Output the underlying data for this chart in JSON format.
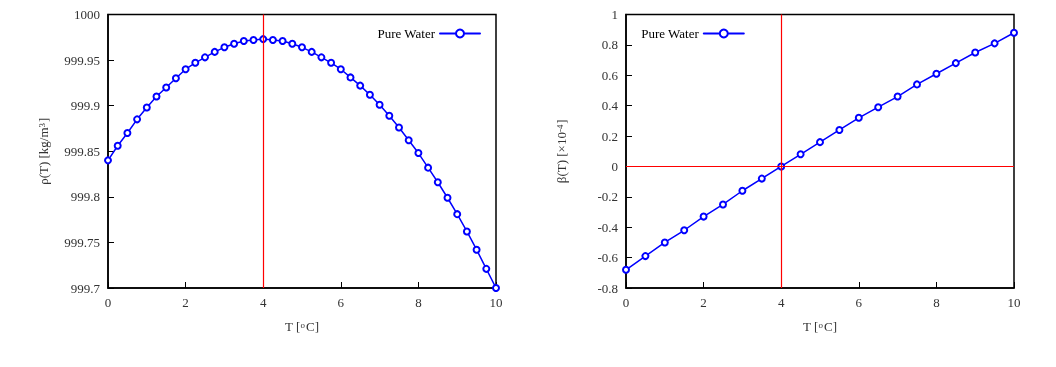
{
  "chart_data": [
    {
      "type": "line",
      "xlabel": "T [$^{o}$C]",
      "ylabel": "ρ(T) [kg/m$^{3}$]",
      "xlim": [
        0,
        10
      ],
      "xticks": [
        0,
        2,
        4,
        6,
        8,
        10
      ],
      "ylim": [
        999.7,
        1000
      ],
      "yticks": [
        999.7,
        999.75,
        999.8,
        999.85,
        999.9,
        999.95,
        1000
      ],
      "legend": "top right",
      "marker": "circle",
      "line_style": "solid",
      "grid": false,
      "series": [
        {
          "name": "Pure Water",
          "color": "#0000ff",
          "x": [
            0,
            0.25,
            0.5,
            0.75,
            1,
            1.25,
            1.5,
            1.75,
            2,
            2.25,
            2.5,
            2.75,
            3,
            3.25,
            3.5,
            3.75,
            4,
            4.25,
            4.5,
            4.75,
            5,
            5.25,
            5.5,
            5.75,
            6,
            6.25,
            6.5,
            6.75,
            7,
            7.25,
            7.5,
            7.75,
            8,
            8.25,
            8.5,
            8.75,
            9,
            9.25,
            9.5,
            9.75,
            10
          ],
          "values": [
            999.84,
            999.856,
            999.87,
            999.885,
            999.898,
            999.91,
            999.92,
            999.93,
            999.94,
            999.947,
            999.953,
            999.959,
            999.964,
            999.968,
            999.971,
            999.972,
            999.973,
            999.972,
            999.971,
            999.968,
            999.964,
            999.959,
            999.953,
            999.947,
            999.94,
            999.931,
            999.922,
            999.912,
            999.901,
            999.889,
            999.876,
            999.862,
            999.848,
            999.832,
            999.816,
            999.799,
            999.781,
            999.762,
            999.742,
            999.721,
            999.7
          ]
        }
      ],
      "ref_lines": [
        {
          "axis": "x",
          "value": 4,
          "color": "#ff0000"
        }
      ]
    },
    {
      "type": "line",
      "xlabel": "T [$^{o}$C]",
      "ylabel": "β(T) [×10$^{-4}$]",
      "xlim": [
        0,
        10
      ],
      "xticks": [
        0,
        2,
        4,
        6,
        8,
        10
      ],
      "ylim": [
        -0.8,
        1
      ],
      "yticks": [
        -0.8,
        -0.6,
        -0.4,
        -0.2,
        0,
        0.2,
        0.4,
        0.6,
        0.8,
        1
      ],
      "legend": "top left",
      "marker": "circle",
      "line_style": "solid",
      "grid": false,
      "series": [
        {
          "name": "Pure Water",
          "color": "#0000ff",
          "x": [
            0,
            0.5,
            1,
            1.5,
            2,
            2.5,
            3,
            3.5,
            4,
            4.5,
            5,
            5.5,
            6,
            6.5,
            7,
            7.5,
            8,
            8.5,
            9,
            9.5,
            10
          ],
          "values": [
            -0.68,
            -0.59,
            -0.5,
            -0.42,
            -0.33,
            -0.25,
            -0.16,
            -0.08,
            0,
            0.08,
            0.16,
            0.24,
            0.32,
            0.39,
            0.46,
            0.54,
            0.61,
            0.68,
            0.75,
            0.81,
            0.88
          ]
        }
      ],
      "ref_lines": [
        {
          "axis": "x",
          "value": 4,
          "color": "#ff0000"
        },
        {
          "axis": "y",
          "value": 0,
          "color": "#ff0000"
        }
      ]
    }
  ]
}
